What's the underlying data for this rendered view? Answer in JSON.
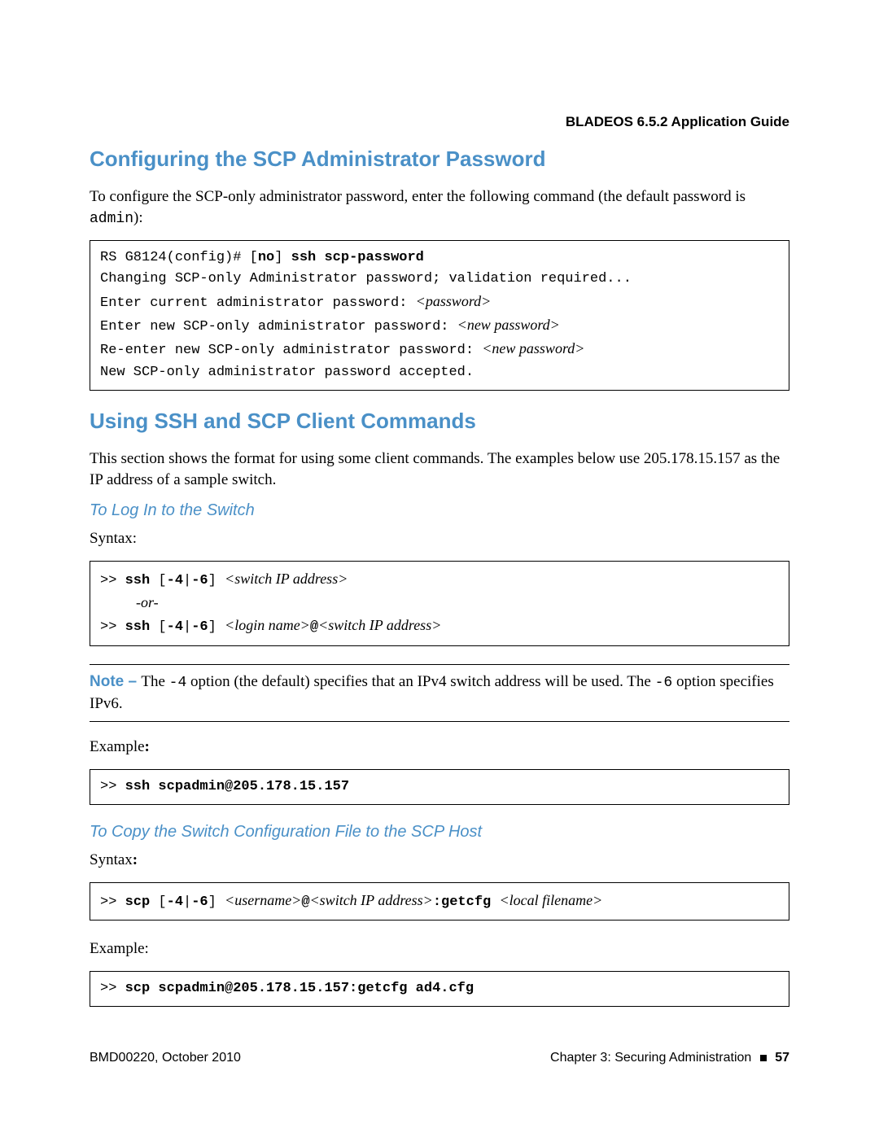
{
  "header": {
    "guide_title": "BLADEOS 6.5.2 Application Guide"
  },
  "colors": {
    "heading": "#4a90c7",
    "text": "#000000",
    "border": "#000000",
    "background": "#ffffff"
  },
  "section1": {
    "title": "Configuring the SCP Administrator Password",
    "intro_a": "To configure the SCP-only administrator password, enter the following command (the default password is ",
    "intro_code": "admin",
    "intro_b": "):",
    "code": {
      "l1_a": "RS G8124(config)# [",
      "l1_b": "no",
      "l1_c": "] ",
      "l1_d": "ssh scp-password",
      "l2": "Changing SCP-only Administrator password; validation required...",
      "l3_a": "Enter current administrator password: ",
      "l3_i": "<password>",
      "l4_a": "Enter new SCP-only administrator password: ",
      "l4_i": "<new password>",
      "l5_a": "Re-enter new SCP-only administrator password: ",
      "l5_i": "<new password>",
      "l6": "New SCP-only administrator password accepted."
    }
  },
  "section2": {
    "title": "Using SSH and SCP Client Commands",
    "intro": "This section shows the format for using some client commands. The examples below use 205.178.15.157 as the IP address of a sample switch.",
    "sub1": {
      "heading": "To Log In to the Switch",
      "syntax_label": "Syntax:",
      "code1": {
        "p1_a": ">> ",
        "p1_b": "ssh",
        "p1_c": " [",
        "p1_d": "-4",
        "p1_e": "|",
        "p1_f": "-6",
        "p1_g": "] ",
        "p1_i": "<switch IP address>",
        "or": "-or-",
        "p2_a": ">> ",
        "p2_b": "ssh",
        "p2_c": " [",
        "p2_d": "-4",
        "p2_e": "|",
        "p2_f": "-6",
        "p2_g": "] ",
        "p2_i1": "<login name>",
        "p2_at": "@",
        "p2_i2": "<switch IP address>"
      },
      "note": {
        "label": "Note – ",
        "a": "The ",
        "c1": "-4",
        "b": " option (the default) specifies that an IPv4 switch address will be used. The ",
        "c2": "-6",
        "c": " option specifies IPv6."
      },
      "example_label": "Example",
      "example_colon": ":",
      "code2": {
        "a": ">> ",
        "b": "ssh scpadmin@205.178.15.157"
      }
    },
    "sub2": {
      "heading": "To Copy the Switch Configuration File to the SCP Host",
      "syntax_label": "Syntax",
      "syntax_colon": ":",
      "code1": {
        "a": ">> ",
        "b": "scp",
        "c": " [",
        "d": "-4",
        "e": "|",
        "f": "-6",
        "g": "] ",
        "i1": "<username>",
        "at": "@",
        "i2": "<switch IP address>",
        "h": ":",
        "j": "getcfg",
        "sp": " ",
        "i3": "<local filename>"
      },
      "example_label": "Example:",
      "code2": {
        "a": ">> ",
        "b": "scp scpadmin@205.178.15.157:getcfg ad4.cfg"
      }
    }
  },
  "footer": {
    "left": "BMD00220, October 2010",
    "right_a": "Chapter 3: Securing Administration",
    "page": "57"
  }
}
